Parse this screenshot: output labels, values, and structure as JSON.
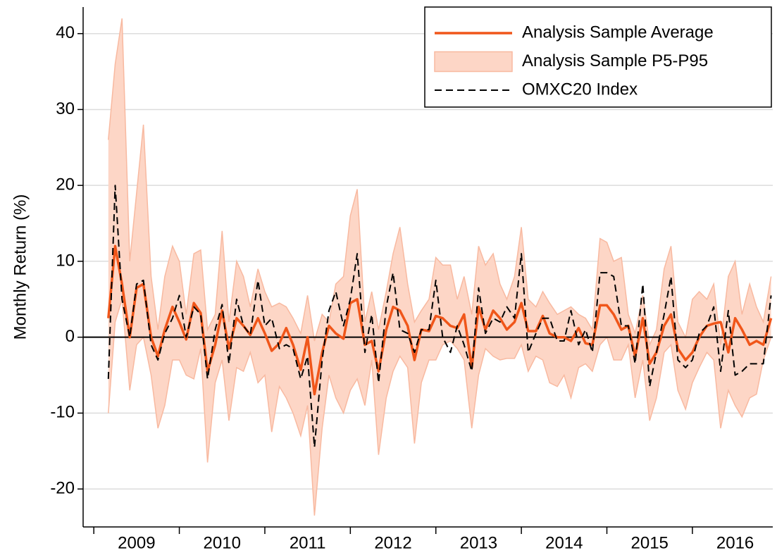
{
  "chart_data": {
    "type": "line",
    "ylabel": "Monthly Return (%)",
    "x": [
      2009.17,
      2009.25,
      2009.33,
      2009.42,
      2009.5,
      2009.58,
      2009.67,
      2009.75,
      2009.83,
      2009.92,
      2010.0,
      2010.08,
      2010.17,
      2010.25,
      2010.33,
      2010.42,
      2010.5,
      2010.58,
      2010.67,
      2010.75,
      2010.83,
      2010.92,
      2011.0,
      2011.08,
      2011.17,
      2011.25,
      2011.33,
      2011.42,
      2011.5,
      2011.58,
      2011.67,
      2011.75,
      2011.83,
      2011.92,
      2012.0,
      2012.08,
      2012.17,
      2012.25,
      2012.33,
      2012.42,
      2012.5,
      2012.58,
      2012.67,
      2012.75,
      2012.83,
      2012.92,
      2013.0,
      2013.08,
      2013.17,
      2013.25,
      2013.33,
      2013.42,
      2013.5,
      2013.58,
      2013.67,
      2013.75,
      2013.83,
      2013.92,
      2014.0,
      2014.08,
      2014.17,
      2014.25,
      2014.33,
      2014.42,
      2014.5,
      2014.58,
      2014.67,
      2014.75,
      2014.83,
      2014.92,
      2015.0,
      2015.08,
      2015.17,
      2015.25,
      2015.33,
      2015.42,
      2015.5,
      2015.58,
      2015.67,
      2015.75,
      2015.83,
      2015.92,
      2016.0,
      2016.08,
      2016.17,
      2016.25,
      2016.33,
      2016.42,
      2016.5,
      2016.58,
      2016.67,
      2016.75,
      2016.83,
      2016.92
    ],
    "series": [
      {
        "name": "Analysis Sample Average",
        "kind": "line",
        "color": "#f0561a",
        "dash": false,
        "values": [
          2.5,
          12,
          7,
          0,
          6.5,
          7,
          0,
          -2.5,
          1,
          4,
          2,
          -0.3,
          4.5,
          3.2,
          -4.5,
          -1,
          3.5,
          -1.5,
          2.5,
          1.5,
          0.3,
          2.5,
          0.5,
          -1.8,
          -0.8,
          1.2,
          -1,
          -4.3,
          0,
          -7.5,
          -2,
          1.5,
          0.5,
          -0.2,
          4.5,
          5,
          -1,
          -0.5,
          -4.5,
          1,
          4,
          3.5,
          1.5,
          -3,
          1,
          0.8,
          2.8,
          2.5,
          1.5,
          1.2,
          3,
          -4,
          4,
          1,
          3.5,
          2.5,
          1,
          2,
          4.5,
          0.8,
          0.8,
          2.8,
          0.5,
          0,
          0,
          -0.5,
          1.2,
          -0.8,
          -1,
          4.2,
          4.2,
          3,
          1,
          1.5,
          -2.5,
          2.5,
          -3.5,
          -2,
          1.5,
          3,
          -1.5,
          -3,
          -2,
          0,
          1.5,
          1.8,
          2,
          -2,
          2.5,
          1,
          -1,
          -0.5,
          -1,
          2.5
        ]
      },
      {
        "name": "Analysis Sample P5-P95",
        "kind": "band",
        "color": "#fdd6c6",
        "edge": "#f8b9a0",
        "upper": [
          26,
          36,
          42,
          10,
          19,
          28,
          8,
          1,
          8,
          12,
          10,
          3,
          11,
          11.5,
          1,
          3,
          14,
          2,
          10,
          8,
          4,
          9,
          6,
          4,
          4.5,
          4,
          2.5,
          0.5,
          5.5,
          -0.5,
          3,
          2,
          7,
          8,
          16,
          19.5,
          2,
          6,
          1,
          6,
          11,
          14.5,
          7,
          2,
          3.5,
          5,
          10.5,
          9.5,
          9.5,
          5,
          8,
          3,
          12,
          9.5,
          11,
          7,
          5,
          8,
          14.5,
          5,
          4,
          6,
          4.5,
          3,
          3.5,
          4,
          3,
          2.5,
          1,
          13,
          12.5,
          10,
          10.5,
          3,
          0.5,
          5.5,
          -1,
          1,
          9,
          12,
          2,
          0,
          5,
          6,
          5,
          7,
          -1,
          8,
          10,
          3,
          7,
          4,
          2,
          8
        ],
        "lower": [
          -10,
          2,
          5,
          -7,
          -1,
          0,
          -5,
          -12,
          -9,
          -3,
          -3,
          -5,
          -5.5,
          -1.5,
          -16.5,
          -6,
          -3,
          -11,
          -4,
          -4.5,
          -2,
          -6,
          -5,
          -12.5,
          -6.5,
          -8,
          -10,
          -13,
          -9,
          -23.5,
          -12,
          -5,
          -8,
          -10,
          -7,
          -5.5,
          -9,
          -3,
          -15.5,
          -8,
          -4.5,
          -2.5,
          -4,
          -14,
          -6,
          -3,
          -3,
          -1,
          -0.5,
          -1.5,
          -3,
          -12,
          -5,
          -1.5,
          -2.5,
          -3,
          -2.8,
          -2.8,
          -1,
          -4.5,
          -2.5,
          -3,
          -6,
          -6.5,
          -5,
          -8,
          -4,
          -3.5,
          -4.5,
          -1,
          0,
          -3,
          -3,
          -1,
          -8,
          -3,
          -11,
          -8,
          -2,
          -1,
          -7,
          -9.5,
          -6,
          -4,
          -2,
          -3,
          -12,
          -7,
          -9,
          -10.5,
          -8,
          -7.5,
          -3,
          0
        ]
      },
      {
        "name": "OMXC20 Index",
        "kind": "line",
        "color": "#000000",
        "dash": true,
        "values": [
          -5.5,
          20,
          5,
          0,
          7,
          7.5,
          -1,
          -3,
          0.5,
          2.5,
          5.5,
          0,
          4,
          3,
          -5.5,
          1,
          4.3,
          -3.5,
          5,
          1.5,
          0.3,
          7.5,
          1.5,
          2.5,
          -1.5,
          -1,
          -1.5,
          -5.5,
          -2.5,
          -14.5,
          -3,
          3.5,
          6,
          1.5,
          5,
          11,
          -2,
          3,
          -6,
          4,
          8.5,
          1,
          0.5,
          -2,
          1,
          1,
          7.5,
          0,
          -2,
          1.5,
          -1,
          -4.5,
          6.5,
          0.5,
          2.5,
          2,
          4,
          2.5,
          11,
          -2,
          0.5,
          2.5,
          2.5,
          -0.5,
          -0.5,
          3.5,
          -1,
          1,
          -2,
          8.5,
          8.5,
          8,
          1.5,
          1.5,
          -3.5,
          7,
          -6.5,
          -2,
          3,
          8,
          -3,
          -4,
          -3,
          0.5,
          1.5,
          4,
          -4.5,
          3.5,
          -5,
          -4.5,
          -3.5,
          -3.5,
          -3.5,
          5.5
        ]
      }
    ],
    "xlim": [
      2008.875,
      2016.94
    ],
    "xticks": [
      {
        "value": 2009.5,
        "label": "2009"
      },
      {
        "value": 2010.5,
        "label": "2010"
      },
      {
        "value": 2011.5,
        "label": "2011"
      },
      {
        "value": 2012.5,
        "label": "2012"
      },
      {
        "value": 2013.5,
        "label": "2013"
      },
      {
        "value": 2014.5,
        "label": "2014"
      },
      {
        "value": 2015.5,
        "label": "2015"
      },
      {
        "value": 2016.5,
        "label": "2016"
      }
    ],
    "ylim": [
      -25,
      43.5
    ],
    "yticks": [
      -20,
      -10,
      0,
      10,
      20,
      30,
      40
    ],
    "grid": true,
    "zero_line": true,
    "legend": "upper-right"
  }
}
